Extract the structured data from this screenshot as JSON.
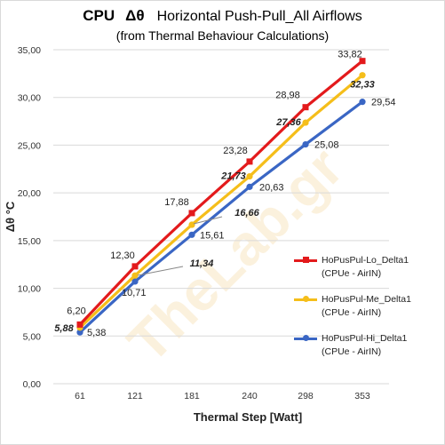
{
  "chart_data": {
    "type": "line",
    "title_cpu": "CPU",
    "title_symbol": "Δθ",
    "title_rest": "Horizontal  Push-Pull_All Airflows",
    "subtitle": "(from Thermal Behaviour Calculations)",
    "xlabel": "Thermal Step [Watt]",
    "ylabel": "Δθ °C",
    "categories": [
      "61",
      "121",
      "181",
      "240",
      "298",
      "353"
    ],
    "ylim": [
      0,
      35
    ],
    "yticks": [
      "0,00",
      "5,00",
      "10,00",
      "15,00",
      "20,00",
      "25,00",
      "30,00",
      "35,00"
    ],
    "grid": true,
    "legend_position": "right",
    "watermark": "TheLab.gr",
    "series": [
      {
        "name": "HoPusPul-Lo_Delta1",
        "legend_sub": "(CPUe - AirIN)",
        "color": "#e31a1c",
        "marker": "square",
        "values": [
          6.2,
          12.3,
          17.88,
          23.28,
          28.98,
          33.82
        ],
        "labels": [
          "6,20",
          "12,30",
          "17,88",
          "23,28",
          "28,98",
          "33,82"
        ]
      },
      {
        "name": "HoPusPul-Me_Delta1",
        "legend_sub": "(CPUe - AirIN)",
        "color": "#f5be1a",
        "marker": "circle",
        "values": [
          5.88,
          11.34,
          16.66,
          21.73,
          27.36,
          32.33
        ],
        "labels": [
          "5,88",
          "11,34",
          "16,66",
          "21,73",
          "27,36",
          "32,33"
        ]
      },
      {
        "name": "HoPusPul-Hi_Delta1",
        "legend_sub": "(CPUe - AirIN)",
        "color": "#3a66c4",
        "marker": "circle",
        "values": [
          5.38,
          10.71,
          15.61,
          20.63,
          25.08,
          29.54
        ],
        "labels": [
          "5,38",
          "10,71",
          "15,61",
          "20,63",
          "25,08",
          "29,54"
        ]
      }
    ]
  }
}
